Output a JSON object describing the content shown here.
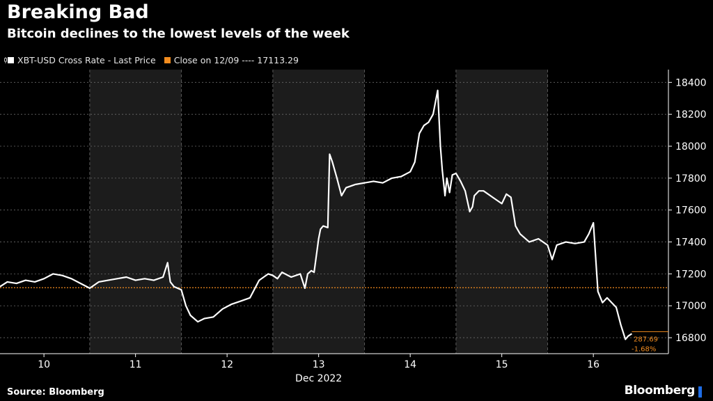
{
  "title": "Breaking Bad",
  "subtitle": "Bitcoin declines to the lowest levels of the week",
  "legend": {
    "price_label": "XBT-USD Cross Rate - Last Price",
    "close_label": "Close on 12/09 ---- 17113.29"
  },
  "source": "Source: Bloomberg",
  "brand": "Bloomberg",
  "colors": {
    "background": "#000000",
    "price_line": "#ffffff",
    "close_line": "#f28c1f",
    "shade": "#1c1c1c",
    "grid": "#6b6b6b",
    "brand_accent": "#1e6de6"
  },
  "end_labels": {
    "change": "287.69",
    "change_pct": "-1.68%"
  },
  "chart_data": {
    "type": "line",
    "title": "Breaking Bad",
    "subtitle": "Bitcoin declines to the lowest levels of the week",
    "xlabel": "Dec 2022",
    "ylabel": "",
    "x_ticks": [
      "10",
      "11",
      "12",
      "13",
      "14",
      "15",
      "16"
    ],
    "x_range_days": [
      9.52,
      16.82
    ],
    "ylim": [
      16700,
      18480
    ],
    "y_ticks": [
      16800,
      17000,
      17200,
      17400,
      17600,
      17800,
      18000,
      18200,
      18400
    ],
    "y_axis_position": "right",
    "grid": true,
    "shaded_periods": [
      [
        10.5,
        11.5
      ],
      [
        12.5,
        13.5
      ],
      [
        14.5,
        15.5
      ]
    ],
    "reference_line": {
      "name": "Close on 12/09",
      "value": 17113.29
    },
    "series": [
      {
        "name": "XBT-USD Cross Rate - Last Price",
        "x": [
          9.52,
          9.6,
          9.7,
          9.8,
          9.9,
          10.0,
          10.1,
          10.2,
          10.3,
          10.4,
          10.5,
          10.6,
          10.7,
          10.8,
          10.9,
          11.0,
          11.1,
          11.2,
          11.3,
          11.35,
          11.38,
          11.42,
          11.5,
          11.55,
          11.6,
          11.68,
          11.75,
          11.85,
          11.95,
          12.05,
          12.15,
          12.25,
          12.35,
          12.45,
          12.5,
          12.55,
          12.6,
          12.7,
          12.8,
          12.85,
          12.88,
          12.92,
          12.95,
          13.0,
          13.02,
          13.05,
          13.1,
          13.12,
          13.15,
          13.2,
          13.25,
          13.3,
          13.4,
          13.5,
          13.6,
          13.7,
          13.8,
          13.9,
          14.0,
          14.05,
          14.1,
          14.15,
          14.2,
          14.25,
          14.3,
          14.33,
          14.35,
          14.38,
          14.4,
          14.43,
          14.46,
          14.5,
          14.55,
          14.6,
          14.65,
          14.68,
          14.7,
          14.75,
          14.8,
          14.9,
          15.0,
          15.05,
          15.1,
          15.15,
          15.2,
          15.3,
          15.4,
          15.5,
          15.55,
          15.6,
          15.7,
          15.8,
          15.9,
          15.95,
          16.0,
          16.05,
          16.1,
          16.15,
          16.2,
          16.25,
          16.3,
          16.35,
          16.38,
          16.42
        ],
        "y": [
          17120,
          17150,
          17140,
          17160,
          17150,
          17170,
          17200,
          17190,
          17170,
          17140,
          17110,
          17150,
          17160,
          17170,
          17180,
          17160,
          17170,
          17160,
          17180,
          17270,
          17150,
          17120,
          17100,
          17000,
          16940,
          16900,
          16920,
          16930,
          16980,
          17010,
          17030,
          17050,
          17160,
          17200,
          17190,
          17170,
          17210,
          17180,
          17200,
          17110,
          17200,
          17220,
          17210,
          17420,
          17480,
          17500,
          17490,
          17950,
          17900,
          17800,
          17690,
          17740,
          17760,
          17770,
          17780,
          17770,
          17800,
          17810,
          17840,
          17900,
          18080,
          18130,
          18150,
          18200,
          18350,
          18000,
          17850,
          17690,
          17800,
          17710,
          17820,
          17830,
          17780,
          17720,
          17590,
          17620,
          17690,
          17720,
          17720,
          17680,
          17640,
          17700,
          17680,
          17500,
          17450,
          17400,
          17420,
          17380,
          17290,
          17380,
          17400,
          17390,
          17400,
          17450,
          17520,
          17090,
          17020,
          17050,
          17020,
          16990,
          16880,
          16790,
          16810,
          16825
        ]
      }
    ]
  }
}
